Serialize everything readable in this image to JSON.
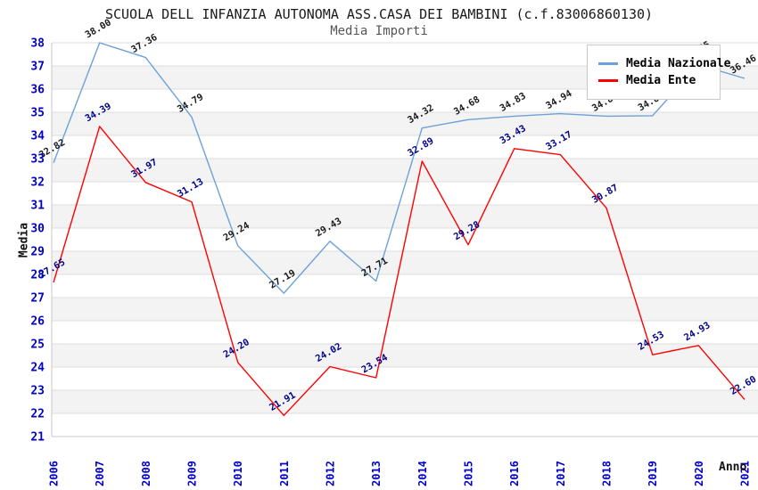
{
  "page": {
    "title": "SCUOLA DELL INFANZIA AUTONOMA ASS.CASA DEI BAMBINI (c.f.83006860130)",
    "subtitle": "Media Importi"
  },
  "chart_data": {
    "type": "line",
    "title": "SCUOLA DELL INFANZIA AUTONOMA ASS.CASA DEI BAMBINI (c.f.83006860130)",
    "subtitle": "Media Importi",
    "xlabel": "Anno",
    "ylabel": "Media",
    "ylim": [
      21,
      38
    ],
    "ytick_step": 1,
    "grid": "horizontal-lines-with-alternating-bands",
    "legend_position": "top-right",
    "categories": [
      "2006",
      "2007",
      "2008",
      "2009",
      "2010",
      "2011",
      "2012",
      "2013",
      "2014",
      "2015",
      "2016",
      "2017",
      "2018",
      "2019",
      "2020",
      "2021"
    ],
    "series": [
      {
        "name": "Media Nazionale",
        "color": "#6DA1D8",
        "label_color": "#1a1a1a",
        "values": [
          32.82,
          38.0,
          37.36,
          34.79,
          29.24,
          27.19,
          29.43,
          27.71,
          34.32,
          34.68,
          34.83,
          34.94,
          34.83,
          34.85,
          37.05,
          36.46
        ]
      },
      {
        "name": "Media Ente",
        "color": "#FF0000",
        "label_color": "#00008B",
        "values": [
          27.65,
          34.39,
          31.97,
          31.13,
          24.2,
          21.91,
          24.02,
          23.54,
          32.89,
          29.28,
          33.43,
          33.17,
          30.87,
          24.53,
          24.93,
          22.6
        ]
      }
    ]
  },
  "colors": {
    "tick_label": "#0000CD",
    "gridline": "#DCDCDC",
    "band": "#F3F3F3",
    "plot_border": "#C8C8C8"
  }
}
